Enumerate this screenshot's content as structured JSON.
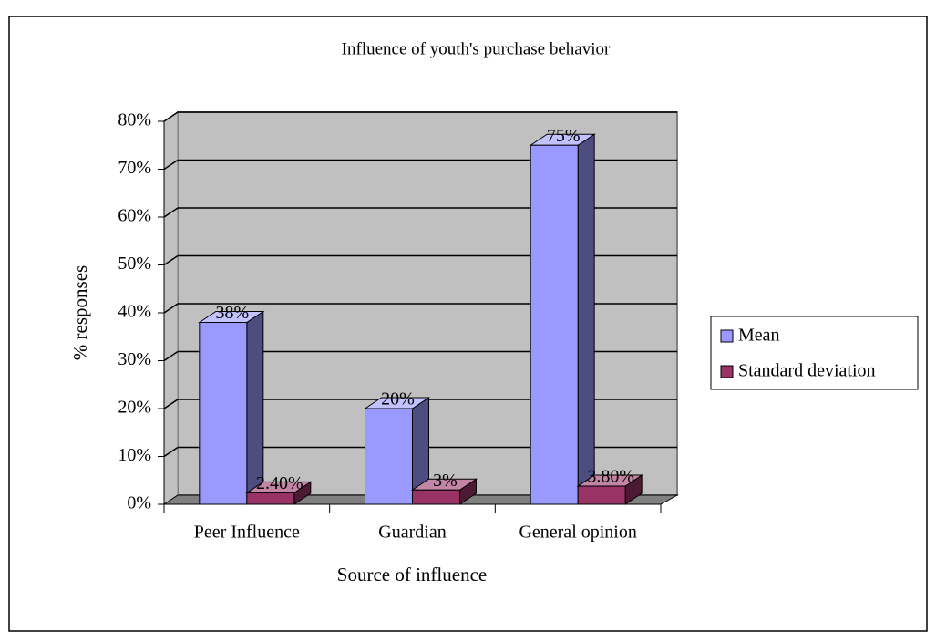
{
  "chart_data": {
    "type": "bar3d",
    "title": "Influence of youth's purchase behavior",
    "xlabel": "Source of influence",
    "ylabel": "% responses",
    "categories": [
      "Peer Influence",
      "Guardian",
      "General opinion"
    ],
    "series": [
      {
        "name": "Mean",
        "color": "#9999ff",
        "values": [
          38,
          20,
          75
        ],
        "value_labels": [
          "38%",
          "20%",
          "75%"
        ]
      },
      {
        "name": "Standard deviation",
        "color": "#993366",
        "values": [
          2.4,
          3,
          3.8
        ],
        "value_labels": [
          "2.40%",
          "3%",
          "3.80%"
        ]
      }
    ],
    "ylim": [
      0,
      80
    ],
    "yticks": [
      {
        "value": 0,
        "label": "0%"
      },
      {
        "value": 10,
        "label": "10%"
      },
      {
        "value": 20,
        "label": "20%"
      },
      {
        "value": 30,
        "label": "30%"
      },
      {
        "value": 40,
        "label": "40%"
      },
      {
        "value": 50,
        "label": "50%"
      },
      {
        "value": 60,
        "label": "60%"
      },
      {
        "value": 70,
        "label": "70%"
      },
      {
        "value": 80,
        "label": "80%"
      }
    ],
    "grid": true,
    "legend": "right"
  }
}
